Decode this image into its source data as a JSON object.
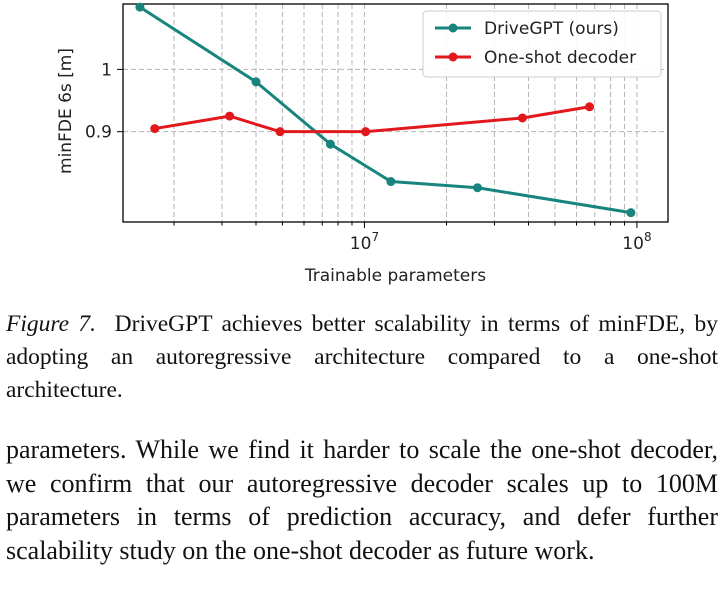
{
  "chart_data": {
    "type": "line",
    "xlabel": "Trainable parameters",
    "ylabel": "minFDE 6s [m]",
    "xscale": "log",
    "xlim": [
      1300000,
      130000000
    ],
    "ylim": [
      0.755,
      1.105
    ],
    "xticks": [
      {
        "value": 10000000,
        "base": "10",
        "exp": "7"
      },
      {
        "value": 100000000,
        "base": "10",
        "exp": "8"
      }
    ],
    "yticks": [
      {
        "value": 0.9,
        "label": "0.9"
      },
      {
        "value": 1.0,
        "label": "1"
      }
    ],
    "grid": true,
    "legend_position": "top-right",
    "series": [
      {
        "name": "DriveGPT (ours)",
        "color": "#17857d",
        "x": [
          1500000,
          4000000,
          7500000,
          12500000,
          26000000,
          95000000
        ],
        "y": [
          1.1,
          0.98,
          0.88,
          0.82,
          0.81,
          0.77
        ]
      },
      {
        "name": "One-shot decoder",
        "color": "#e3181c",
        "x": [
          1700000,
          3200000,
          4900000,
          10100000,
          38000000,
          67000000
        ],
        "y": [
          0.905,
          0.925,
          0.9,
          0.9,
          0.922,
          0.94
        ]
      }
    ]
  },
  "caption": {
    "label": "Figure 7.",
    "text": "DriveGPT achieves better scalability in terms of minFDE, by adopting an autoregressive architecture compared to a one-shot architecture."
  },
  "body": {
    "text": "parameters. While we find it harder to scale the one-shot decoder, we confirm that our autoregressive decoder scales up to 100M parameters in terms of prediction accuracy, and defer further scalability study on the one-shot decoder as future work."
  }
}
